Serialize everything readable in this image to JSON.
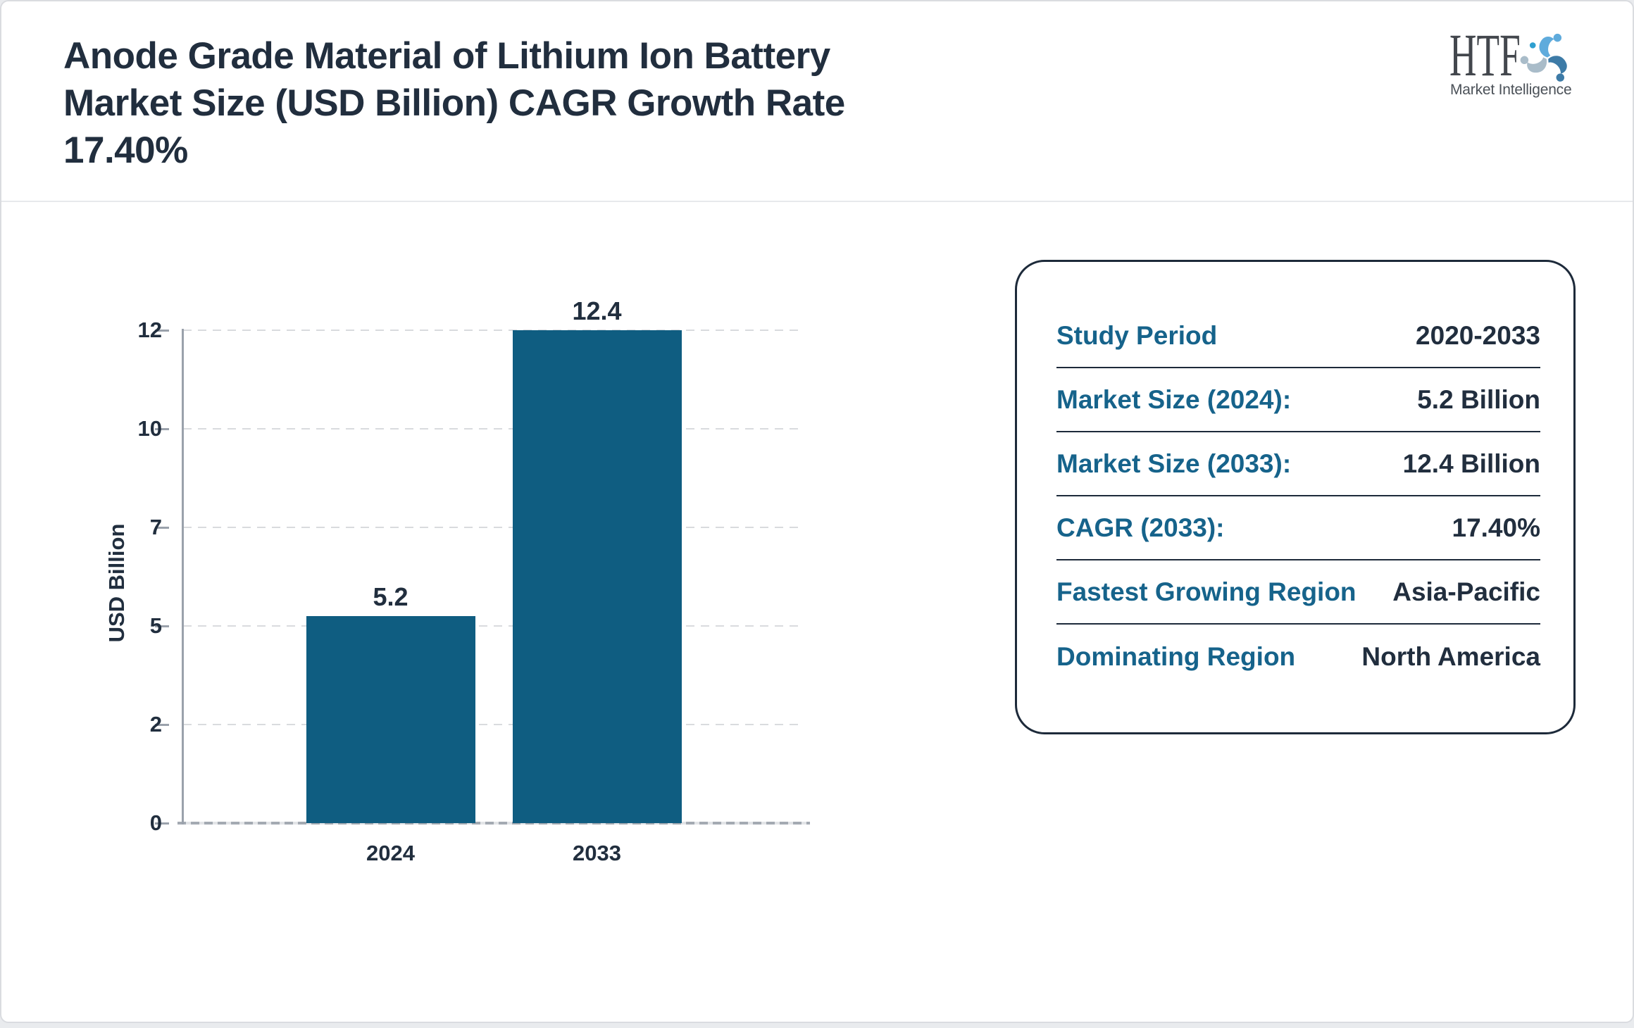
{
  "header": {
    "title_lines": [
      "Anode Grade Material of Lithium Ion Battery",
      "Market Size (USD Billion) CAGR Growth Rate",
      "17.40%"
    ],
    "logo": {
      "brand": "HTF",
      "tagline": "Market Intelligence"
    }
  },
  "chart_data": {
    "type": "bar",
    "categories": [
      "2024",
      "2033"
    ],
    "values": [
      5.2,
      12.4
    ],
    "bar_labels": [
      "5.2",
      "12.4"
    ],
    "title": "",
    "xlabel": "",
    "ylabel": "USD Billion",
    "yticks": [
      0,
      2,
      5,
      7,
      10,
      12
    ],
    "ylim": [
      0,
      12
    ],
    "grid": "horizontal-dashed",
    "legend": "none",
    "bar_color": "#0f5d81"
  },
  "panel": {
    "rows": [
      {
        "label": "Study Period",
        "value": "2020-2033"
      },
      {
        "label": "Market Size (2024):",
        "value": "5.2 Billion"
      },
      {
        "label": "Market Size (2033):",
        "value": "12.4 Billion"
      },
      {
        "label": "CAGR (2033):",
        "value": "17.40%"
      },
      {
        "label": "Fastest Growing Region",
        "value": "Asia-Pacific"
      },
      {
        "label": "Dominating Region",
        "value": "North America"
      }
    ]
  },
  "colors": {
    "bar": "#0f5d81",
    "label_teal": "#16638b",
    "text_dark": "#212e3e",
    "axis_gray": "#9aa1ab",
    "grid_gray": "#d9dbde"
  }
}
